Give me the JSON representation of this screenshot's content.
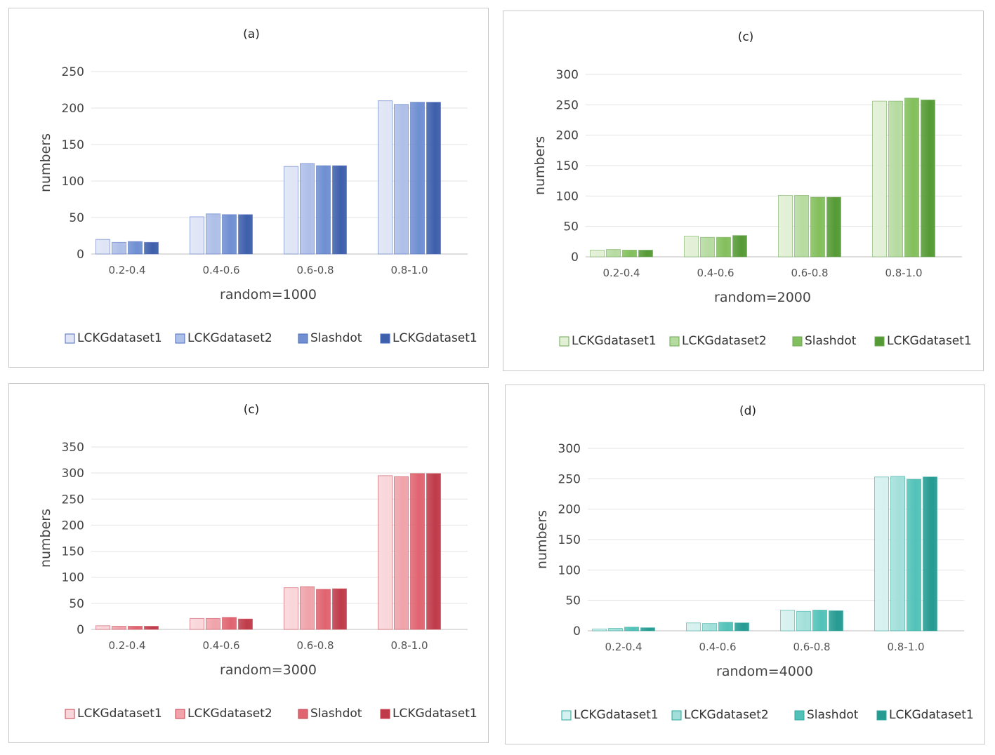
{
  "chart_data": [
    {
      "type": "bar",
      "title": "(a)",
      "xlabel": "random=1000",
      "ylabel": "numbers",
      "ylim": [
        0,
        250
      ],
      "yticks": [
        0,
        50,
        100,
        150,
        200,
        250
      ],
      "categories": [
        "0.2-0.4",
        "0.4-0.6",
        "0.6-0.8",
        "0.8-1.0"
      ],
      "series": [
        {
          "name": "LCKGdataset1",
          "values": [
            20,
            51,
            120,
            210
          ]
        },
        {
          "name": "LCKGdataset2",
          "values": [
            16,
            55,
            124,
            205
          ]
        },
        {
          "name": "Slashdot",
          "values": [
            17,
            54,
            121,
            208
          ]
        },
        {
          "name": "LCKGdataset1",
          "values": [
            16,
            54,
            121,
            208
          ]
        }
      ],
      "colors": [
        "#dfe5f5",
        "#aebfe8",
        "#6f8fd2",
        "#3e5fab"
      ],
      "stroke": "#4a6cc0",
      "legend_position": "bottom"
    },
    {
      "type": "bar",
      "title": "(c)",
      "xlabel": "random=2000",
      "ylabel": "numbers",
      "ylim": [
        0,
        300
      ],
      "yticks": [
        0,
        50,
        100,
        150,
        200,
        250,
        300
      ],
      "categories": [
        "0.2-0.4",
        "0.4-0.6",
        "0.6-0.8",
        "0.8-1.0"
      ],
      "series": [
        {
          "name": "LCKGdataset1",
          "values": [
            11,
            34,
            101,
            256
          ]
        },
        {
          "name": "LCKGdataset2",
          "values": [
            12,
            32,
            101,
            256
          ]
        },
        {
          "name": "Slashdot",
          "values": [
            11,
            32,
            98,
            261
          ]
        },
        {
          "name": "LCKGdataset1",
          "values": [
            11,
            35,
            98,
            258
          ]
        }
      ],
      "colors": [
        "#e2f0d6",
        "#b6dba0",
        "#83bf5c",
        "#559a35"
      ],
      "stroke": "#6aa84f",
      "legend_position": "bottom"
    },
    {
      "type": "bar",
      "title": "(c)",
      "xlabel": "random=3000",
      "ylabel": "numbers",
      "ylim": [
        0,
        350
      ],
      "yticks": [
        0,
        50,
        100,
        150,
        200,
        250,
        300,
        350
      ],
      "categories": [
        "0.2-0.4",
        "0.4-0.6",
        "0.6-0.8",
        "0.8-1.0"
      ],
      "series": [
        {
          "name": "LCKGdataset1",
          "values": [
            7,
            21,
            80,
            295
          ]
        },
        {
          "name": "LCKGdataset2",
          "values": [
            6,
            21,
            82,
            293
          ]
        },
        {
          "name": "Slashdot",
          "values": [
            6,
            23,
            77,
            299
          ]
        },
        {
          "name": "LCKGdataset1",
          "values": [
            6,
            20,
            78,
            299
          ]
        }
      ],
      "colors": [
        "#f9d6d9",
        "#f0a3aa",
        "#e06470",
        "#bf3b4a"
      ],
      "stroke": "#c9404f",
      "legend_position": "bottom"
    },
    {
      "type": "bar",
      "title": "(d)",
      "xlabel": "random=4000",
      "ylabel": "numbers",
      "ylim": [
        0,
        300
      ],
      "yticks": [
        0,
        50,
        100,
        150,
        200,
        250,
        300
      ],
      "categories": [
        "0.2-0.4",
        "0.4-0.6",
        "0.6-0.8",
        "0.8-1.0"
      ],
      "series": [
        {
          "name": "LCKGdataset1",
          "values": [
            3,
            13,
            34,
            253
          ]
        },
        {
          "name": "LCKGdataset2",
          "values": [
            4,
            12,
            32,
            254
          ]
        },
        {
          "name": "Slashdot",
          "values": [
            6,
            14,
            34,
            249
          ]
        },
        {
          "name": "LCKGdataset1",
          "values": [
            5,
            13,
            33,
            253
          ]
        }
      ],
      "colors": [
        "#d6f1ef",
        "#a3dfda",
        "#52c2b8",
        "#259b92"
      ],
      "stroke": "#2aa79c",
      "legend_position": "bottom"
    }
  ]
}
